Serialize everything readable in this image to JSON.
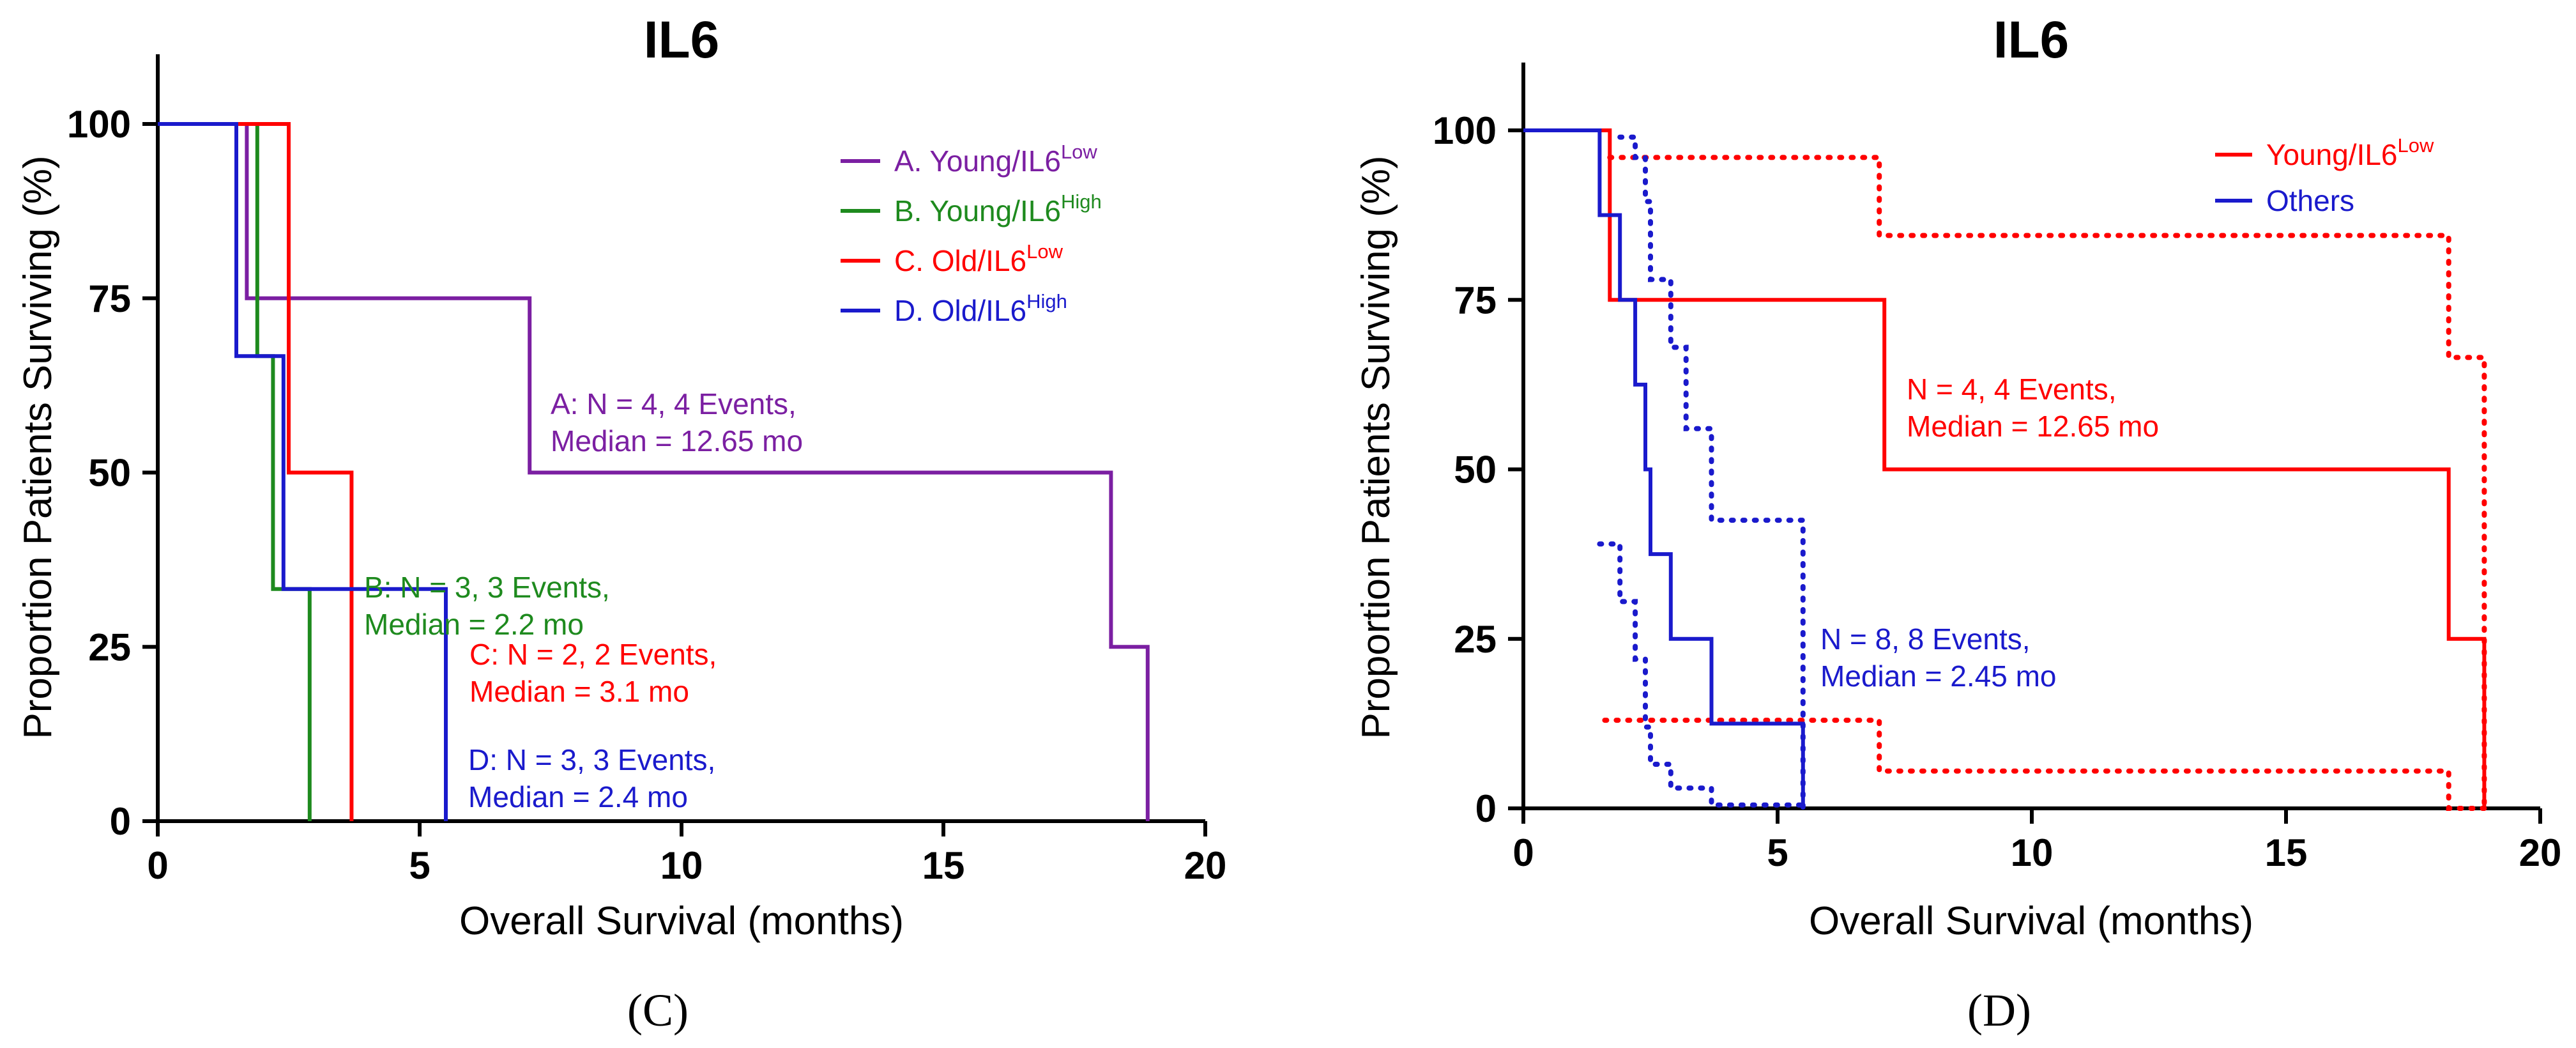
{
  "chart_data": [
    {
      "type": "line",
      "subtype": "kaplan-meier",
      "panel_label": "(C)",
      "title": "IL6",
      "xlabel": "Overall Survival (months)",
      "ylabel": "Proportion Patients Surviving (%)",
      "xlim": [
        0,
        20
      ],
      "ylim": [
        0,
        110
      ],
      "xticks": [
        "0",
        "5",
        "10",
        "15",
        "20"
      ],
      "yticks": [
        "0",
        "25",
        "50",
        "75",
        "100"
      ],
      "legend_position": "top-right",
      "series": [
        {
          "name": "A. Young/IL6",
          "sup": "Low",
          "color": "#7b1fa2",
          "steps": [
            [
              0,
              100
            ],
            [
              1.7,
              100
            ],
            [
              1.7,
              75
            ],
            [
              7.1,
              75
            ],
            [
              7.1,
              50
            ],
            [
              18.2,
              50
            ],
            [
              18.2,
              25
            ],
            [
              18.9,
              25
            ],
            [
              18.9,
              0
            ]
          ],
          "annotation": [
            "A: N = 4, 4 Events,",
            "Median = 12.65 mo"
          ]
        },
        {
          "name": "B. Young/IL6",
          "sup": "High",
          "color": "#1e8a1e",
          "steps": [
            [
              0,
              100
            ],
            [
              1.9,
              100
            ],
            [
              1.9,
              66.7
            ],
            [
              2.2,
              66.7
            ],
            [
              2.2,
              33.3
            ],
            [
              2.9,
              33.3
            ],
            [
              2.9,
              0
            ]
          ],
          "annotation": [
            "B: N = 3, 3 Events,",
            "Median = 2.2 mo"
          ]
        },
        {
          "name": "C. Old/IL6",
          "sup": "Low",
          "color": "#ff0000",
          "steps": [
            [
              0,
              100
            ],
            [
              2.5,
              100
            ],
            [
              2.5,
              50
            ],
            [
              3.7,
              50
            ],
            [
              3.7,
              0
            ]
          ],
          "annotation": [
            "C: N = 2, 2 Events,",
            "Median = 3.1 mo"
          ]
        },
        {
          "name": "D. Old/IL6",
          "sup": "High",
          "color": "#1a1acc",
          "steps": [
            [
              0,
              100
            ],
            [
              1.5,
              100
            ],
            [
              1.5,
              66.7
            ],
            [
              2.4,
              66.7
            ],
            [
              2.4,
              33.3
            ],
            [
              5.5,
              33.3
            ],
            [
              5.5,
              0
            ]
          ],
          "annotation": [
            "D: N = 3, 3 Events,",
            "Median = 2.4 mo"
          ]
        }
      ]
    },
    {
      "type": "line",
      "subtype": "kaplan-meier",
      "panel_label": "(D)",
      "title": "IL6",
      "xlabel": "Overall Survival (months)",
      "ylabel": "Proportion Patients Surviving (%)",
      "xlim": [
        0,
        20
      ],
      "ylim": [
        0,
        110
      ],
      "xticks": [
        "0",
        "5",
        "10",
        "15",
        "20"
      ],
      "yticks": [
        "0",
        "25",
        "50",
        "75",
        "100"
      ],
      "legend_position": "top-right",
      "series": [
        {
          "name": "Young/IL6",
          "sup": "Low",
          "color": "#ff0000",
          "steps": [
            [
              0,
              100
            ],
            [
              1.7,
              100
            ],
            [
              1.7,
              75
            ],
            [
              7.1,
              75
            ],
            [
              7.1,
              50
            ],
            [
              18.2,
              50
            ],
            [
              18.2,
              25
            ],
            [
              18.9,
              25
            ],
            [
              18.9,
              0
            ]
          ],
          "ci_upper": [
            [
              1.7,
              96
            ],
            [
              7.0,
              96
            ],
            [
              7.0,
              84.5
            ],
            [
              18.2,
              84.5
            ],
            [
              18.2,
              66.5
            ],
            [
              18.9,
              66.5
            ],
            [
              18.9,
              0
            ]
          ],
          "ci_lower": [
            [
              1.6,
              13
            ],
            [
              7.0,
              13
            ],
            [
              7.0,
              5.5
            ],
            [
              18.2,
              5.5
            ],
            [
              18.2,
              0
            ],
            [
              18.9,
              0
            ]
          ],
          "annotation": [
            "N = 4, 4 Events,",
            "Median = 12.65 mo"
          ]
        },
        {
          "name": "Others",
          "sup": "",
          "color": "#1a1acc",
          "steps": [
            [
              0,
              100
            ],
            [
              1.5,
              100
            ],
            [
              1.5,
              87.5
            ],
            [
              1.9,
              87.5
            ],
            [
              1.9,
              75
            ],
            [
              2.2,
              75
            ],
            [
              2.2,
              62.5
            ],
            [
              2.4,
              62.5
            ],
            [
              2.4,
              50
            ],
            [
              2.5,
              50
            ],
            [
              2.5,
              37.5
            ],
            [
              2.9,
              37.5
            ],
            [
              2.9,
              25
            ],
            [
              3.7,
              25
            ],
            [
              3.7,
              12.5
            ],
            [
              5.5,
              12.5
            ],
            [
              5.5,
              0
            ]
          ],
          "ci_upper": [
            [
              1.9,
              99
            ],
            [
              2.2,
              99
            ],
            [
              2.2,
              96
            ],
            [
              2.4,
              96
            ],
            [
              2.4,
              89.5
            ],
            [
              2.5,
              89.5
            ],
            [
              2.5,
              78
            ],
            [
              2.9,
              78
            ],
            [
              2.9,
              68
            ],
            [
              3.2,
              68
            ],
            [
              3.2,
              56
            ],
            [
              3.7,
              56
            ],
            [
              3.7,
              42.5
            ],
            [
              5.5,
              42.5
            ],
            [
              5.5,
              0
            ]
          ],
          "ci_lower": [
            [
              1.5,
              39
            ],
            [
              1.9,
              39
            ],
            [
              1.9,
              30.5
            ],
            [
              2.2,
              30.5
            ],
            [
              2.2,
              22
            ],
            [
              2.4,
              22
            ],
            [
              2.4,
              12
            ],
            [
              2.5,
              12
            ],
            [
              2.5,
              6.5
            ],
            [
              2.9,
              6.5
            ],
            [
              2.9,
              3
            ],
            [
              3.7,
              3
            ],
            [
              3.7,
              0.5
            ],
            [
              5.5,
              0.5
            ]
          ],
          "annotation": [
            "N = 8, 8 Events,",
            "Median = 2.45 mo"
          ]
        }
      ]
    }
  ]
}
